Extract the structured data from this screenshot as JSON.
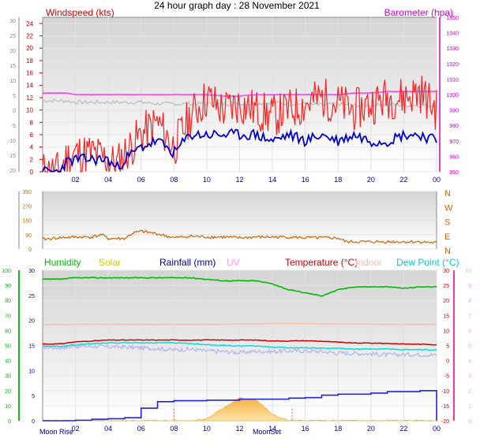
{
  "title": "24 hour graph day : 28 November 2021",
  "colors": {
    "windspeed": "#cc0000",
    "gust": "#ff2020",
    "avg_wind": "#0000cc",
    "barometer": "#cc00cc",
    "baro_line": "#ff40ff",
    "grey_line": "#bbbbbb",
    "direction": "#cc6600",
    "humidity": "#00bb00",
    "solar": "#cccc00",
    "solar_fill": "#f5b041",
    "rainfall": "#000099",
    "rain_line": "#2222dd",
    "uv": "#ff99ff",
    "temperature": "#cc0000",
    "indoor": "#ffbbaa",
    "dew_point": "#00dddd",
    "lavender": "#aaaaee",
    "axis_left_green": "#00cc00",
    "axis_right_pink": "#ff3399",
    "axis_grey": "#888888",
    "time_label": "#000099",
    "moon_marker": "#ff6633"
  },
  "x_ticks": [
    "02",
    "04",
    "06",
    "08",
    "10",
    "12",
    "14",
    "16",
    "18",
    "20",
    "22",
    "00"
  ],
  "top_panel": {
    "left_label": "Windspeed (kts)",
    "right_label": "Barometer (hpa)",
    "outer_left_ticks": [
      "30",
      "25",
      "20",
      "15",
      "10",
      "5",
      "0",
      "-5",
      "-10",
      "-15",
      "-20"
    ],
    "left_ticks": [
      "24",
      "22",
      "20",
      "18",
      "16",
      "14",
      "12",
      "10",
      "8",
      "6",
      "4",
      "2",
      "0"
    ],
    "right_ticks": [
      "1050",
      "1040",
      "1030",
      "1020",
      "1010",
      "1000",
      "990",
      "980",
      "970",
      "960",
      "950"
    ],
    "ylim_wind": [
      0,
      25
    ],
    "ylim_baro": [
      950,
      1050
    ]
  },
  "mid_panel": {
    "left_ticks": [
      "360",
      "270",
      "180",
      "90",
      "0"
    ],
    "right_ticks": [
      "N",
      "W",
      "S",
      "E",
      "N"
    ],
    "ylim": [
      0,
      360
    ]
  },
  "bottom_panel": {
    "legend": {
      "humidity": "Humidity",
      "solar": "Solar",
      "rainfall": "Rainfall (mm)",
      "uv": "UV",
      "temperature": "Temperature (°C)",
      "indoor": "Indoor",
      "dew_point": "Dew Point (°C)"
    },
    "humidity_ticks": [
      "100",
      "90",
      "80",
      "70",
      "60",
      "50",
      "40",
      "30",
      "20",
      "10",
      "0"
    ],
    "rain_ticks": [
      "30",
      "25",
      "20",
      "15",
      "10",
      "5",
      "0"
    ],
    "temp_ticks": [
      "30",
      "25",
      "20",
      "15",
      "10",
      "5",
      "0",
      "-5",
      "-10",
      "-15",
      "-20"
    ],
    "uv_ticks": [
      "10",
      "9",
      "8",
      "7",
      "6",
      "5",
      "4",
      "3",
      "2",
      "1",
      "0"
    ],
    "moon_rise": "Moon Rise",
    "moon_set": "MoonSet"
  },
  "chart_data": [
    {
      "type": "line",
      "title": "Windspeed (kts)",
      "x_hours": [
        0,
        1,
        1.4,
        2,
        3,
        4,
        4.5,
        5,
        6,
        7,
        8,
        9,
        10,
        11,
        12,
        13,
        14,
        15,
        16,
        17,
        18,
        19,
        20,
        21,
        22,
        23,
        24
      ],
      "series": [
        {
          "name": "Windspeed (kts)",
          "values": [
            0,
            0,
            2,
            3,
            3,
            2,
            1,
            3,
            6,
            8,
            4,
            9,
            12,
            10,
            11,
            10,
            9,
            10,
            11,
            12,
            11,
            10,
            11,
            12,
            12,
            13,
            10
          ]
        },
        {
          "name": "Windspeed (kts)",
          "values": [
            0,
            0,
            1.5,
            2,
            2,
            2,
            0.5,
            2,
            4,
            5,
            3,
            6,
            6,
            6,
            6,
            6,
            5,
            6,
            5,
            6,
            5,
            6,
            5,
            5,
            6,
            6,
            5
          ]
        },
        {
          "name": "Barometer (hpa)",
          "values": [
            1001,
            1001,
            1001,
            1000,
            1000,
            1000,
            1000,
            1000,
            1000,
            1000,
            1000,
            1000,
            1000,
            999,
            999,
            1000,
            1000,
            1000,
            1000,
            1000,
            1000,
            1001,
            1001,
            1002,
            1002,
            1002,
            1002
          ]
        },
        {
          "name": "",
          "values": [
            996,
            996,
            996,
            995,
            995,
            995,
            995,
            995,
            995,
            994,
            994,
            994,
            994,
            994,
            994,
            994,
            995,
            994,
            994,
            993,
            994,
            993,
            993,
            994,
            993,
            993,
            993
          ]
        }
      ],
      "xlim": [
        0,
        24
      ],
      "ylim": [
        0,
        25
      ]
    },
    {
      "type": "line",
      "x_hours": [
        0,
        1,
        2,
        3,
        3.6,
        4,
        5,
        5.5,
        6,
        7,
        8,
        9,
        10,
        11,
        12,
        13,
        14,
        15,
        16,
        17,
        18,
        18.5,
        19,
        20,
        21,
        22,
        23,
        24
      ],
      "series": [
        {
          "name": "",
          "values": [
            60,
            70,
            75,
            75,
            90,
            65,
            65,
            100,
            110,
            95,
            70,
            80,
            75,
            75,
            70,
            75,
            75,
            75,
            70,
            70,
            68,
            45,
            45,
            45,
            45,
            45,
            45,
            38
          ]
        }
      ],
      "xlim": [
        0,
        24
      ],
      "ylim": [
        0,
        360
      ]
    },
    {
      "type": "line",
      "x_hours": [
        0,
        1,
        2,
        3,
        4,
        5,
        6,
        7,
        8,
        9,
        10,
        11,
        12,
        13,
        14,
        15,
        16,
        17,
        18,
        19,
        20,
        21,
        22,
        23,
        24
      ],
      "series": [
        {
          "name": "Humidity",
          "values": [
            94,
            94,
            95,
            95,
            95,
            95,
            95,
            95,
            95,
            95,
            94,
            93,
            93,
            93,
            91,
            87,
            85,
            83,
            87,
            89,
            89,
            89,
            88,
            89,
            89
          ]
        },
        {
          "name": "Temperature (°C)",
          "values": [
            5.5,
            5.5,
            6.2,
            6.5,
            6.8,
            6.8,
            6.8,
            6.8,
            6.8,
            6.8,
            6.8,
            6.8,
            6.8,
            6.8,
            6.5,
            6.5,
            6.6,
            6.4,
            6.1,
            5.8,
            5.8,
            5.7,
            5.5,
            5.4,
            5.3
          ]
        },
        {
          "name": "Dew Point (°C)",
          "values": [
            4.7,
            4.7,
            5.2,
            5.6,
            5.9,
            5.9,
            5.9,
            5.9,
            5.9,
            5.6,
            5.2,
            5.0,
            4.8,
            4.8,
            4.5,
            4.2,
            4.2,
            4.1,
            4.1,
            3.8,
            3.8,
            3.8,
            3.6,
            3.6,
            3.5
          ]
        },
        {
          "name": "Indoor",
          "values": [
            12,
            12,
            12,
            12,
            12,
            12,
            12,
            12,
            12,
            12,
            12,
            12,
            12.2,
            12.2,
            12.3,
            12.3,
            12.3,
            12.2,
            12.2,
            12.1,
            12.1,
            12,
            12,
            12,
            12
          ]
        },
        {
          "name": "",
          "values": [
            4.5,
            4.2,
            4.8,
            4.7,
            4.6,
            4.5,
            4.2,
            4.0,
            3.5,
            3.8,
            3.2,
            3.0,
            2.6,
            3.1,
            3.0,
            3.2,
            3.2,
            3.0,
            2.5,
            2.4,
            2.2,
            1.9,
            2.0,
            2.0,
            1.8
          ]
        },
        {
          "name": "Rainfall (mm)",
          "values": [
            0,
            0,
            0.1,
            0.3,
            0.4,
            0.6,
            2.5,
            3.8,
            4.0,
            4.0,
            4.1,
            4.1,
            4.3,
            4.3,
            4.3,
            4.5,
            4.6,
            5.1,
            5.3,
            5.3,
            5.5,
            5.8,
            5.8,
            6.0,
            0
          ]
        },
        {
          "name": "Solar",
          "values": [
            0,
            0,
            0,
            0,
            0,
            0,
            0,
            0,
            0,
            0,
            4,
            25,
            45,
            42,
            12,
            0,
            0,
            0,
            0,
            0,
            0,
            0,
            0,
            0,
            0
          ]
        }
      ],
      "xlim": [
        0,
        24
      ],
      "ylim_humidity": [
        0,
        100
      ],
      "ylim_temperature": [
        -20,
        30
      ],
      "ylim_rain": [
        0,
        30
      ]
    }
  ]
}
